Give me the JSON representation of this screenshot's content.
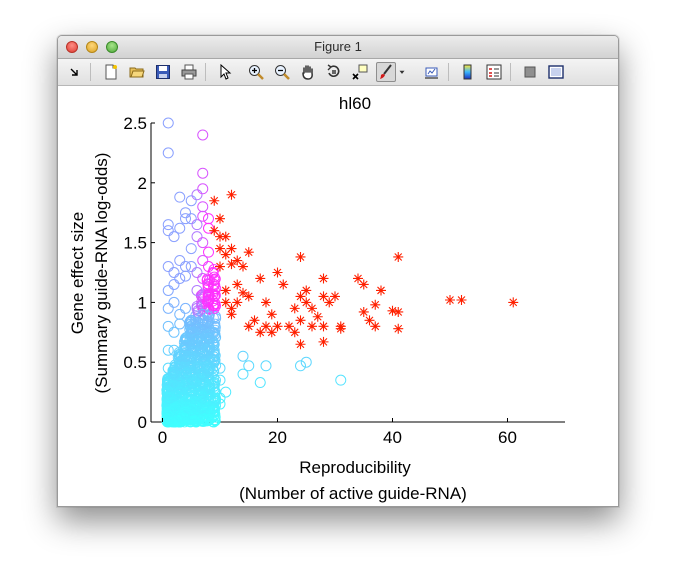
{
  "window": {
    "title": "Figure 1"
  },
  "toolbar": {
    "icons": [
      "dock-arrow-icon",
      "new-figure-icon",
      "open-file-icon",
      "save-icon",
      "print-icon",
      "pointer-icon",
      "zoom-in-icon",
      "zoom-out-icon",
      "pan-hand-icon",
      "rotate-3d-icon",
      "data-cursor-icon",
      "brush-icon",
      "brush-dropdown-icon",
      "link-plot-icon",
      "colorbar-icon",
      "legend-icon",
      "hide-tools-icon",
      "show-tools-icon"
    ]
  },
  "colors": {
    "low": "#40ffff",
    "mid": "#8aa0ff",
    "high": "#ff30ff",
    "outlier": "#ff2000"
  },
  "chart_data": {
    "type": "scatter",
    "title": "hl60",
    "xlabel": "Reproducibility",
    "xlabel2": "(Number of active guide-RNA)",
    "ylabel": "Gene effect size",
    "ylabel2": "(Summary guide-RNA log-odds)",
    "xlim": [
      -2,
      70
    ],
    "ylim": [
      0,
      2.5
    ],
    "xticks": [
      0,
      20,
      40,
      60
    ],
    "yticks": [
      0,
      0.5,
      1,
      1.5,
      2,
      2.5
    ],
    "xtick_labels": [
      "0",
      "20",
      "40",
      "60"
    ],
    "ytick_labels": [
      "0",
      "0.5",
      "1",
      "1.5",
      "2",
      "2.5"
    ],
    "grid": false,
    "legend": "none",
    "series": [
      {
        "marker": "circle",
        "points": [
          [
            1,
            2.5
          ],
          [
            1,
            2.25
          ],
          [
            3,
            1.88
          ],
          [
            1,
            1.65
          ],
          [
            1,
            1.6
          ],
          [
            2,
            1.55
          ],
          [
            3,
            1.62
          ],
          [
            4,
            1.75
          ],
          [
            4,
            1.7
          ],
          [
            5,
            1.7
          ],
          [
            5,
            1.85
          ],
          [
            6,
            1.65
          ],
          [
            6,
            1.9
          ],
          [
            7,
            2.4
          ],
          [
            7,
            2.08
          ],
          [
            7,
            1.95
          ],
          [
            7,
            1.8
          ],
          [
            7,
            1.72
          ],
          [
            8,
            1.7
          ],
          [
            8,
            1.62
          ],
          [
            6,
            1.55
          ],
          [
            7,
            1.5
          ],
          [
            5,
            1.45
          ],
          [
            8,
            1.42
          ],
          [
            1,
            1.3
          ],
          [
            2,
            1.25
          ],
          [
            3,
            1.35
          ],
          [
            4,
            1.3
          ],
          [
            3,
            1.2
          ],
          [
            1,
            1.1
          ],
          [
            2,
            1.15
          ],
          [
            4,
            1.22
          ],
          [
            5,
            1.3
          ],
          [
            6,
            1.25
          ],
          [
            7,
            1.35
          ],
          [
            8,
            1.3
          ],
          [
            8,
            1.15
          ],
          [
            7,
            1.2
          ],
          [
            6,
            1.1
          ],
          [
            9,
            1.05
          ],
          [
            9,
            0.95
          ],
          [
            8,
            0.88
          ],
          [
            1,
            0.95
          ],
          [
            2,
            1.0
          ],
          [
            3,
            0.9
          ],
          [
            4,
            0.95
          ],
          [
            5,
            0.85
          ],
          [
            6,
            0.95
          ],
          [
            7,
            0.9
          ],
          [
            9,
            0.8
          ],
          [
            1,
            0.8
          ],
          [
            2,
            0.75
          ],
          [
            3,
            0.82
          ],
          [
            4,
            0.7
          ],
          [
            5,
            0.75
          ],
          [
            6,
            0.7
          ],
          [
            7,
            0.65
          ],
          [
            8,
            0.6
          ],
          [
            9,
            0.5
          ],
          [
            10,
            0.45
          ],
          [
            10,
            0.35
          ],
          [
            14,
            0.4
          ],
          [
            14,
            0.55
          ],
          [
            17,
            0.33
          ],
          [
            18,
            0.47
          ],
          [
            15,
            0.47
          ],
          [
            24,
            0.47
          ],
          [
            25,
            0.5
          ],
          [
            31,
            0.35
          ],
          [
            9,
            0.3
          ],
          [
            8,
            0.25
          ],
          [
            7,
            0.2
          ],
          [
            6,
            0.15
          ],
          [
            5,
            0.1
          ],
          [
            4,
            0.08
          ],
          [
            3,
            0.05
          ],
          [
            2,
            0.1
          ],
          [
            1,
            0.05
          ],
          [
            1,
            0.2
          ],
          [
            2,
            0.3
          ],
          [
            3,
            0.25
          ],
          [
            4,
            0.4
          ],
          [
            5,
            0.35
          ],
          [
            6,
            0.45
          ],
          [
            7,
            0.4
          ],
          [
            3,
            0.55
          ],
          [
            2,
            0.6
          ],
          [
            4,
            0.55
          ],
          [
            5,
            0.55
          ],
          [
            8,
            0.7
          ],
          [
            6,
            0.3
          ],
          [
            7,
            0.55
          ],
          [
            9,
            0.65
          ],
          [
            9,
            0.6
          ],
          [
            8,
            0.45
          ],
          [
            10,
            0.2
          ],
          [
            11,
            0.25
          ],
          [
            10,
            0.15
          ],
          [
            1,
            0.45
          ],
          [
            1,
            0.6
          ]
        ]
      },
      {
        "marker": "asterisk",
        "color": "#ff2000",
        "points": [
          [
            12,
            1.9
          ],
          [
            9,
            1.85
          ],
          [
            10,
            1.7
          ],
          [
            9,
            1.6
          ],
          [
            10,
            1.55
          ],
          [
            11,
            1.55
          ],
          [
            11,
            1.4
          ],
          [
            10,
            1.45
          ],
          [
            12,
            1.45
          ],
          [
            13,
            1.35
          ],
          [
            15,
            1.42
          ],
          [
            10,
            1.3
          ],
          [
            12,
            1.32
          ],
          [
            14,
            1.3
          ],
          [
            11,
            1.1
          ],
          [
            13,
            1.15
          ],
          [
            14,
            1.08
          ],
          [
            11,
            1.0
          ],
          [
            12,
            0.95
          ],
          [
            12,
            0.9
          ],
          [
            13,
            1.0
          ],
          [
            15,
            1.05
          ],
          [
            17,
            1.2
          ],
          [
            20,
            1.25
          ],
          [
            21,
            1.15
          ],
          [
            18,
            1.0
          ],
          [
            19,
            0.9
          ],
          [
            16,
            0.85
          ],
          [
            15,
            0.8
          ],
          [
            17,
            0.75
          ],
          [
            18,
            0.8
          ],
          [
            19,
            0.75
          ],
          [
            20,
            0.8
          ],
          [
            22,
            0.8
          ],
          [
            23,
            0.75
          ],
          [
            24,
            0.85
          ],
          [
            23,
            0.95
          ],
          [
            24,
            1.05
          ],
          [
            24,
            1.38
          ],
          [
            25,
            1.0
          ],
          [
            25,
            1.1
          ],
          [
            26,
            0.95
          ],
          [
            26,
            0.8
          ],
          [
            27,
            0.88
          ],
          [
            24,
            0.65
          ],
          [
            28,
            1.2
          ],
          [
            28,
            1.05
          ],
          [
            29,
            1.0
          ],
          [
            28,
            0.8
          ],
          [
            28,
            0.67
          ],
          [
            30,
            1.05
          ],
          [
            31,
            0.8
          ],
          [
            31,
            0.78
          ],
          [
            34,
            1.2
          ],
          [
            35,
            1.15
          ],
          [
            35,
            0.92
          ],
          [
            36,
            0.85
          ],
          [
            37,
            0.98
          ],
          [
            37,
            0.8
          ],
          [
            38,
            1.1
          ],
          [
            40,
            0.93
          ],
          [
            41,
            0.92
          ],
          [
            41,
            0.78
          ],
          [
            41,
            1.38
          ],
          [
            50,
            1.02
          ],
          [
            52,
            1.02
          ],
          [
            61,
            1.0
          ]
        ]
      }
    ]
  }
}
